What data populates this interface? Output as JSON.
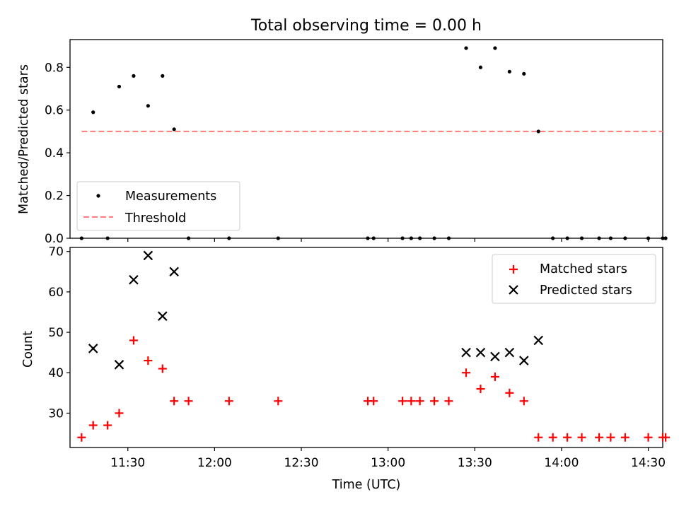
{
  "chart_data": [
    {
      "type": "scatter",
      "title": "Total observing time = 0.00 h",
      "xlabel": "",
      "ylabel": "Matched/Predicted stars",
      "ylim": [
        0,
        0.93
      ],
      "xlim": [
        "11:10",
        "14:35"
      ],
      "yticks": [
        0.0,
        0.2,
        0.4,
        0.6,
        0.8
      ],
      "ytick_labels": [
        "0.0",
        "0.2",
        "0.4",
        "0.6",
        "0.8"
      ],
      "legend_position": "lower-left",
      "series": [
        {
          "name": "Measurements",
          "marker": "dot",
          "color": "#000000",
          "x": [
            "11:14",
            "11:18",
            "11:23",
            "11:27",
            "11:32",
            "11:37",
            "11:42",
            "11:46",
            "11:51",
            "12:05",
            "12:22",
            "12:53",
            "12:55",
            "13:05",
            "13:08",
            "13:11",
            "13:16",
            "13:21",
            "13:27",
            "13:32",
            "13:37",
            "13:42",
            "13:47",
            "13:52",
            "13:57",
            "14:02",
            "14:07",
            "14:13",
            "14:17",
            "14:22",
            "14:30",
            "14:35",
            "14:36"
          ],
          "y": [
            0,
            0.59,
            0,
            0.71,
            0.76,
            0.62,
            0.76,
            0.51,
            0,
            0,
            0,
            0,
            0,
            0,
            0,
            0,
            0,
            0,
            0.89,
            0.8,
            0.89,
            0.78,
            0.77,
            0.5,
            0,
            0,
            0,
            0,
            0,
            0,
            0,
            0,
            0
          ]
        },
        {
          "name": "Threshold",
          "marker": "dashed-line",
          "color": "#ff7b7b",
          "x": [
            "11:14",
            "14:35"
          ],
          "y": [
            0.5,
            0.5
          ]
        }
      ]
    },
    {
      "type": "scatter",
      "title": "",
      "xlabel": "Time (UTC)",
      "ylabel": "Count",
      "ylim": [
        21.5,
        71
      ],
      "xlim": [
        "11:10",
        "14:35"
      ],
      "yticks": [
        30,
        40,
        50,
        60,
        70
      ],
      "ytick_labels": [
        "30",
        "40",
        "50",
        "60",
        "70"
      ],
      "xticks": [
        "11:30",
        "12:00",
        "12:30",
        "13:00",
        "13:30",
        "14:00",
        "14:30"
      ],
      "xtick_labels": [
        "11:30",
        "12:00",
        "12:30",
        "13:00",
        "13:30",
        "14:00",
        "14:30"
      ],
      "legend_position": "upper-right",
      "series": [
        {
          "name": "Matched stars",
          "marker": "plus",
          "color": "#ff0000",
          "x": [
            "11:14",
            "11:18",
            "11:23",
            "11:27",
            "11:32",
            "11:37",
            "11:42",
            "11:46",
            "11:51",
            "12:05",
            "12:22",
            "12:53",
            "12:55",
            "13:05",
            "13:08",
            "13:11",
            "13:16",
            "13:21",
            "13:27",
            "13:32",
            "13:37",
            "13:42",
            "13:47",
            "13:52",
            "13:57",
            "14:02",
            "14:07",
            "14:13",
            "14:17",
            "14:22",
            "14:30",
            "14:35",
            "14:36"
          ],
          "y": [
            24,
            27,
            27,
            30,
            48,
            43,
            41,
            33,
            33,
            33,
            33,
            33,
            33,
            33,
            33,
            33,
            33,
            33,
            40,
            36,
            39,
            35,
            33,
            24,
            24,
            24,
            24,
            24,
            24,
            24,
            24,
            24,
            24
          ]
        },
        {
          "name": "Predicted stars",
          "marker": "x",
          "color": "#000000",
          "x": [
            "11:18",
            "11:27",
            "11:32",
            "11:37",
            "11:42",
            "11:46",
            "13:27",
            "13:32",
            "13:37",
            "13:42",
            "13:47",
            "13:52"
          ],
          "y": [
            46,
            42,
            63,
            69,
            54,
            65,
            45,
            45,
            44,
            45,
            43,
            48
          ]
        }
      ]
    }
  ]
}
